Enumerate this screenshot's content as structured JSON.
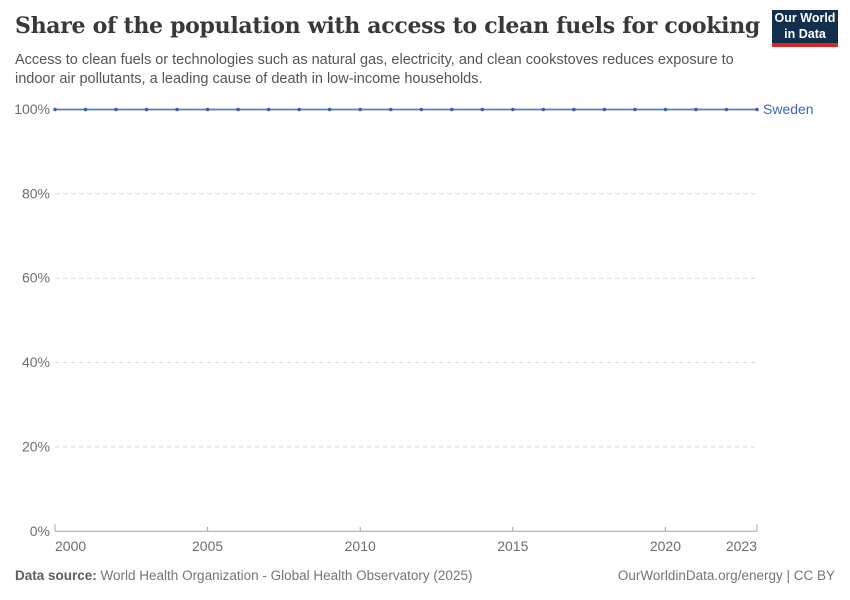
{
  "header": {
    "logo_line1": "Our World",
    "logo_line2": "in Data",
    "logo_bg_color": "#12304e",
    "logo_stripe_color": "#dc2621"
  },
  "chart_data": {
    "type": "line",
    "title": "Share of the population with access to clean fuels for cooking",
    "subtitle": "Access to clean fuels or technologies such as natural gas, electricity, and clean cookstoves reduces exposure to indoor air pollutants, a leading cause of death in low-income households.",
    "x": [
      2000,
      2001,
      2002,
      2003,
      2004,
      2005,
      2006,
      2007,
      2008,
      2009,
      2010,
      2011,
      2012,
      2013,
      2014,
      2015,
      2016,
      2017,
      2018,
      2019,
      2020,
      2021,
      2022,
      2023
    ],
    "series": [
      {
        "name": "Sweden",
        "values": [
          100,
          100,
          100,
          100,
          100,
          100,
          100,
          100,
          100,
          100,
          100,
          100,
          100,
          100,
          100,
          100,
          100,
          100,
          100,
          100,
          100,
          100,
          100,
          100
        ],
        "line_color": "#5b7ec1",
        "point_color": "#3c5fa7",
        "label_color": "#3a68ba"
      }
    ],
    "xlim": [
      2000,
      2023
    ],
    "ylim": [
      0,
      100
    ],
    "x_ticks": [
      2000,
      2005,
      2010,
      2015,
      2020,
      2023
    ],
    "y_ticks": [
      0,
      20,
      40,
      60,
      80,
      100
    ],
    "y_suffix": "%",
    "grid": "horizontal-dashed",
    "legend_position": "right-of-line-end",
    "colors": {
      "grid": "#d6d6d6",
      "axis": "#a3a3a3",
      "tick_text": "#6e6e6e"
    }
  },
  "footer": {
    "datasource_label": "Data source:",
    "datasource_value": " World Health Organization - Global Health Observatory (2025)",
    "link": "OurWorldinData.org/energy | CC BY"
  }
}
